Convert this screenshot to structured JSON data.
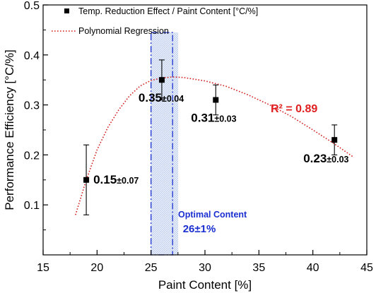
{
  "chart_data": {
    "type": "scatter",
    "xlabel": "Paint Content [%]",
    "ylabel": "Performance Efficiency [°C/%]",
    "xlim": [
      15,
      45
    ],
    "ylim": [
      0.0,
      0.5
    ],
    "x_ticks": [
      "15",
      "20",
      "25",
      "30",
      "35",
      "40",
      "45"
    ],
    "y_ticks": [
      "0.1",
      "0.2",
      "0.3",
      "0.4",
      "0.5"
    ],
    "grid": false,
    "legend_position": "top-left",
    "series": [
      {
        "name": "Temp. Reduction Effect / Paint Content [°C/%]",
        "marker": "square",
        "color": "#000000",
        "points": [
          {
            "x": 19,
            "y": 0.15,
            "err": 0.07,
            "main": "0.15",
            "err_text": "±0.07"
          },
          {
            "x": 26,
            "y": 0.35,
            "err": 0.04,
            "main": "0.35",
            "err_text": "±0.04"
          },
          {
            "x": 31,
            "y": 0.31,
            "err": 0.03,
            "main": "0.31",
            "err_text": "±0.03"
          },
          {
            "x": 42,
            "y": 0.23,
            "err": 0.03,
            "main": "0.23",
            "err_text": "±0.03"
          }
        ]
      },
      {
        "name": "Polynomial Regression",
        "style": "dotted",
        "color": "#d42020",
        "curve": [
          {
            "x": 18.0,
            "y": 0.08
          },
          {
            "x": 19.0,
            "y": 0.15
          },
          {
            "x": 20.0,
            "y": 0.21
          },
          {
            "x": 21.0,
            "y": 0.255
          },
          {
            "x": 22.0,
            "y": 0.29
          },
          {
            "x": 23.0,
            "y": 0.318
          },
          {
            "x": 24.0,
            "y": 0.338
          },
          {
            "x": 25.0,
            "y": 0.349
          },
          {
            "x": 26.0,
            "y": 0.354
          },
          {
            "x": 27.0,
            "y": 0.356
          },
          {
            "x": 28.0,
            "y": 0.355
          },
          {
            "x": 30.0,
            "y": 0.348
          },
          {
            "x": 32.0,
            "y": 0.337
          },
          {
            "x": 34.0,
            "y": 0.32
          },
          {
            "x": 36.0,
            "y": 0.3
          },
          {
            "x": 38.0,
            "y": 0.277
          },
          {
            "x": 40.0,
            "y": 0.25
          },
          {
            "x": 42.0,
            "y": 0.222
          },
          {
            "x": 43.8,
            "y": 0.195
          }
        ]
      }
    ],
    "annotations": {
      "r_squared": "R² = 0.89",
      "r_squared_color": "#e02020",
      "optimal_title": "Optimal Content",
      "optimal_value": "26±1%",
      "optimal_color": "#1a2fd0",
      "optimal_range": [
        25,
        27
      ]
    }
  }
}
